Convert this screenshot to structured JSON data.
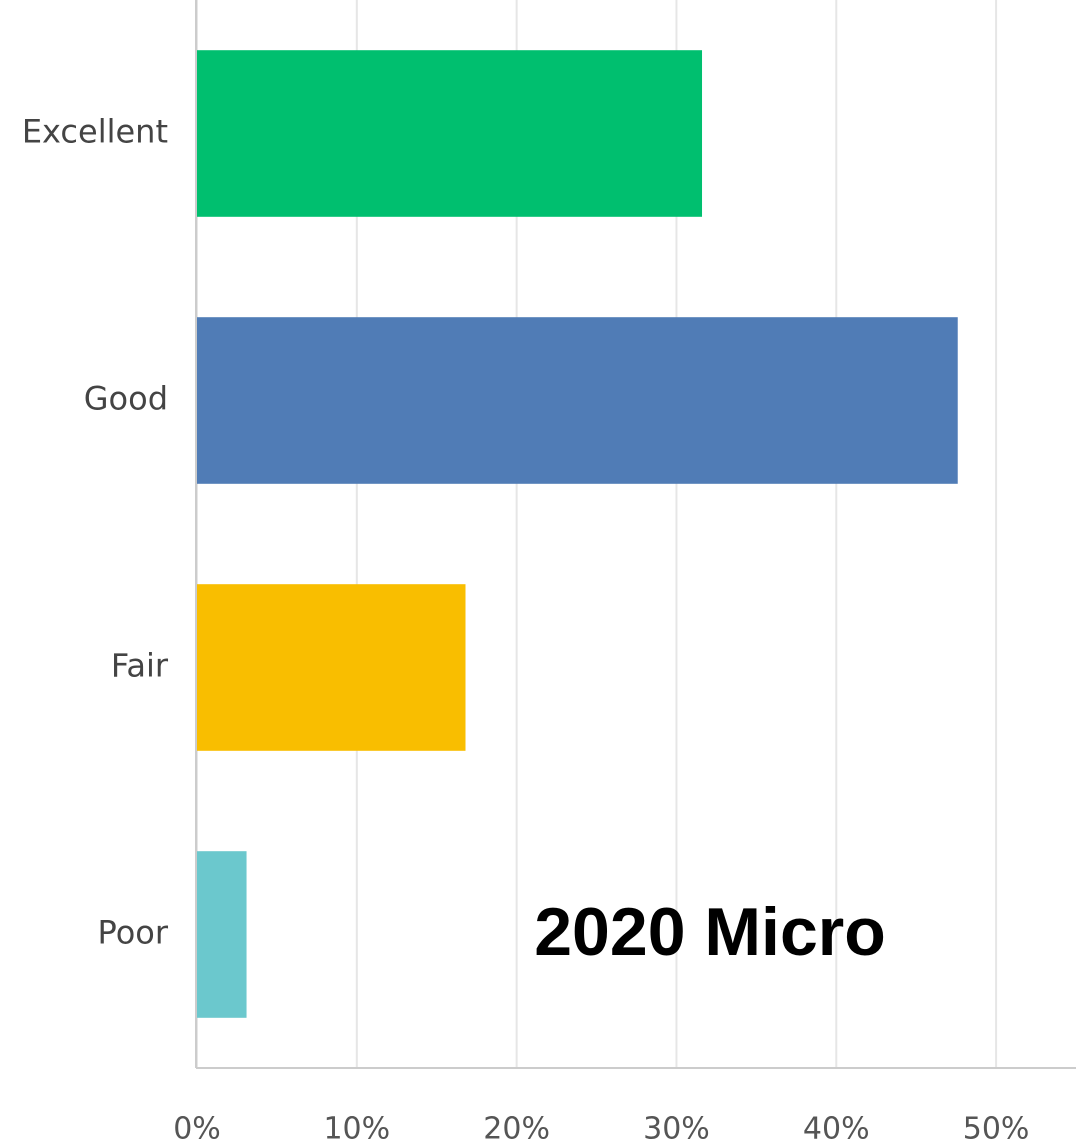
{
  "chart_data": {
    "type": "bar",
    "orientation": "horizontal",
    "categories": [
      "Excellent",
      "Good",
      "Fair",
      "Poor"
    ],
    "values": [
      31.6,
      47.6,
      16.8,
      3.1
    ],
    "colors": [
      "#00bf6f",
      "#507cb6",
      "#f9be00",
      "#6bc8cd"
    ],
    "xlim": [
      0,
      55
    ],
    "xticks": [
      {
        "value": 0,
        "label": "0%"
      },
      {
        "value": 10,
        "label": "10%"
      },
      {
        "value": 20,
        "label": "20%"
      },
      {
        "value": 30,
        "label": "30%"
      },
      {
        "value": 40,
        "label": "40%"
      },
      {
        "value": 50,
        "label": "50%"
      }
    ],
    "grid": true,
    "annotation": "2020 Micro"
  }
}
